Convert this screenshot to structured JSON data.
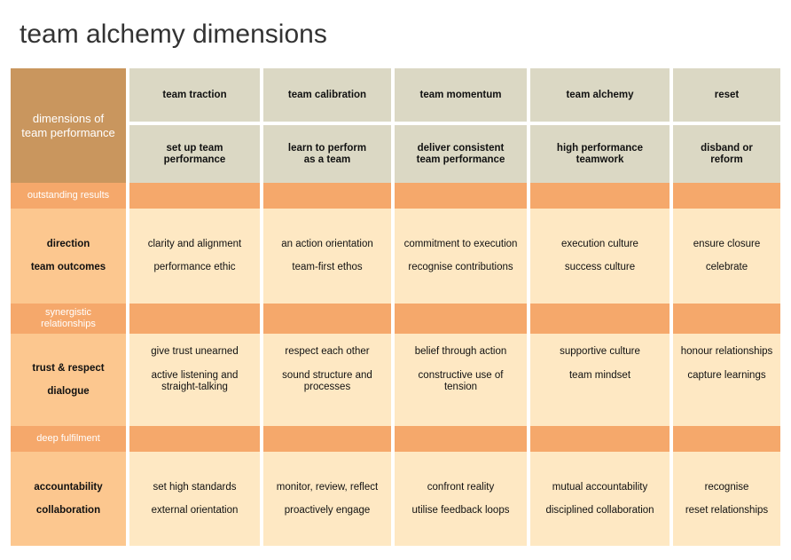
{
  "title": "team alchemy dimensions",
  "corner_label": "dimensions of team performance",
  "columns": [
    {
      "stage": "team traction",
      "goal": "set up team performance"
    },
    {
      "stage": "team calibration",
      "goal": "learn to perform as a team"
    },
    {
      "stage": "team momentum",
      "goal": "deliver consistent team performance"
    },
    {
      "stage": "team alchemy",
      "goal": "high performance teamwork"
    },
    {
      "stage": "reset",
      "goal": "disband or reform"
    }
  ],
  "bands": [
    {
      "band_label": "outstanding results",
      "dims": [
        "direction",
        "team outcomes"
      ],
      "cells": [
        [
          "clarity and alignment",
          "performance ethic"
        ],
        [
          "an action orientation",
          "team-first ethos"
        ],
        [
          "commitment to execution",
          "recognise contributions"
        ],
        [
          "execution culture",
          "success culture"
        ],
        [
          "ensure closure",
          "celebrate"
        ]
      ]
    },
    {
      "band_label": "synergistic relationships",
      "dims": [
        "trust & respect",
        "dialogue"
      ],
      "cells": [
        [
          "give trust unearned",
          "active listening and straight-talking"
        ],
        [
          "respect each other",
          "sound structure and processes"
        ],
        [
          "belief through action",
          "constructive use of tension"
        ],
        [
          "supportive culture",
          "team mindset"
        ],
        [
          "honour relationships",
          "capture learnings"
        ]
      ]
    },
    {
      "band_label": "deep fulfilment",
      "dims": [
        "accountability",
        "collaboration"
      ],
      "cells": [
        [
          "set high standards",
          "external orientation"
        ],
        [
          "monitor, review, reflect",
          "proactively engage"
        ],
        [
          "confront reality",
          "utilise feedback loops"
        ],
        [
          "mutual accountability",
          "disciplined collaboration"
        ],
        [
          "recognise",
          "reset relationships"
        ]
      ]
    }
  ],
  "colors": {
    "corner": "#c9965e",
    "header": "#dbd8c4",
    "band": "#f5a86b",
    "row_label": "#fcc78f",
    "body": "#fee8c3"
  }
}
